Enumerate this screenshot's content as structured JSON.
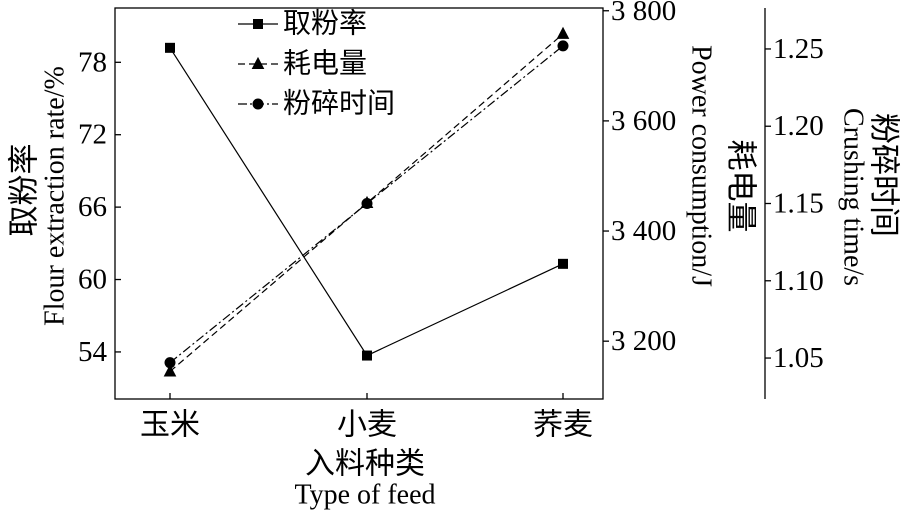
{
  "chart_data": {
    "type": "line",
    "categories": [
      "玉米",
      "小麦",
      "荞麦"
    ],
    "xlabel_cn": "入料种类",
    "xlabel_en": "Type of feed",
    "grid": false,
    "legend": "top-center",
    "line_color": "#000000",
    "axes": {
      "left": {
        "label_cn": "取粉率",
        "label_en": "Flour extraction rate/%",
        "ticks": [
          54,
          60,
          66,
          72,
          78
        ],
        "tick_labels": [
          "54",
          "60",
          "66",
          "72",
          "78"
        ],
        "ylim": [
          50.1,
          82.5
        ]
      },
      "middle": {
        "label_cn": "耗电量",
        "label_en": "Power consumption/J",
        "ticks": [
          3200,
          3400,
          3600,
          3800
        ],
        "tick_labels": [
          "3 200",
          "3 400",
          "3 600",
          "3 800"
        ],
        "ylim": [
          3095,
          3805
        ]
      },
      "right": {
        "label_cn": "粉碎时间",
        "label_en": "Crushing time/s",
        "ticks": [
          1.05,
          1.1,
          1.15,
          1.2,
          1.25
        ],
        "tick_labels": [
          "1.05",
          "1.10",
          "1.15",
          "1.20",
          "1.25"
        ],
        "ylim": [
          1.0235,
          1.2765
        ]
      }
    },
    "series": [
      {
        "name": "取粉率",
        "axis": "left",
        "marker": "square",
        "line": "solid",
        "values": [
          79.2,
          53.7,
          61.3
        ]
      },
      {
        "name": "耗电量",
        "axis": "middle",
        "marker": "triangle",
        "line": "dashed",
        "values": [
          3145,
          3451,
          3758
        ]
      },
      {
        "name": "粉碎时间",
        "axis": "right",
        "marker": "circle",
        "line": "dash-dot",
        "values": [
          1.047,
          1.15,
          1.252
        ]
      }
    ]
  }
}
